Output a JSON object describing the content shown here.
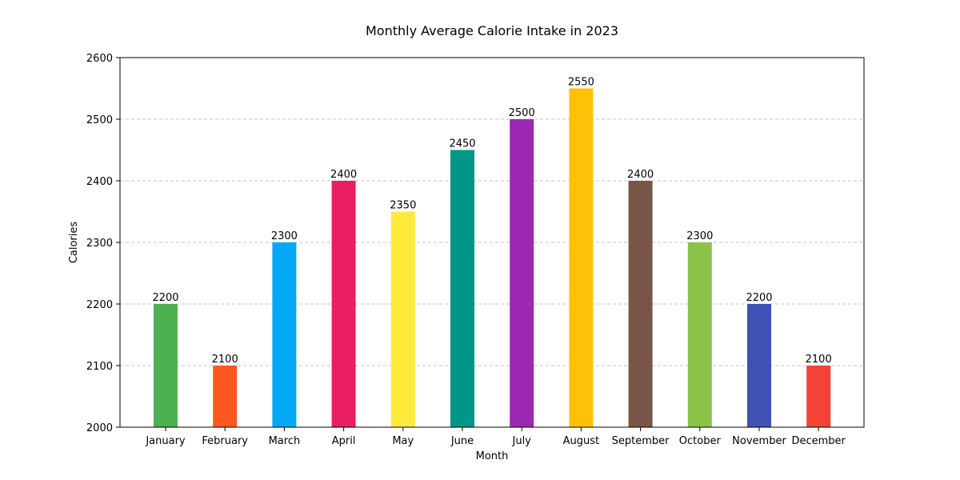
{
  "chart_data": {
    "type": "bar",
    "title": "Monthly Average Calorie Intake in 2023",
    "xlabel": "Month",
    "ylabel": "Calories",
    "ylim": [
      2000,
      2600
    ],
    "yticks": [
      2000,
      2100,
      2200,
      2300,
      2400,
      2500,
      2600
    ],
    "grid": "y-dashed",
    "categories": [
      "January",
      "February",
      "March",
      "April",
      "May",
      "June",
      "July",
      "August",
      "September",
      "October",
      "November",
      "December"
    ],
    "values": [
      2200,
      2100,
      2300,
      2400,
      2350,
      2450,
      2500,
      2550,
      2400,
      2300,
      2200,
      2100
    ],
    "colors": [
      "#4caf50",
      "#ff5722",
      "#03a9f4",
      "#e91e63",
      "#ffeb3b",
      "#009688",
      "#9c27b0",
      "#ffc107",
      "#795548",
      "#8bc34a",
      "#3f51b5",
      "#f44336"
    ]
  }
}
